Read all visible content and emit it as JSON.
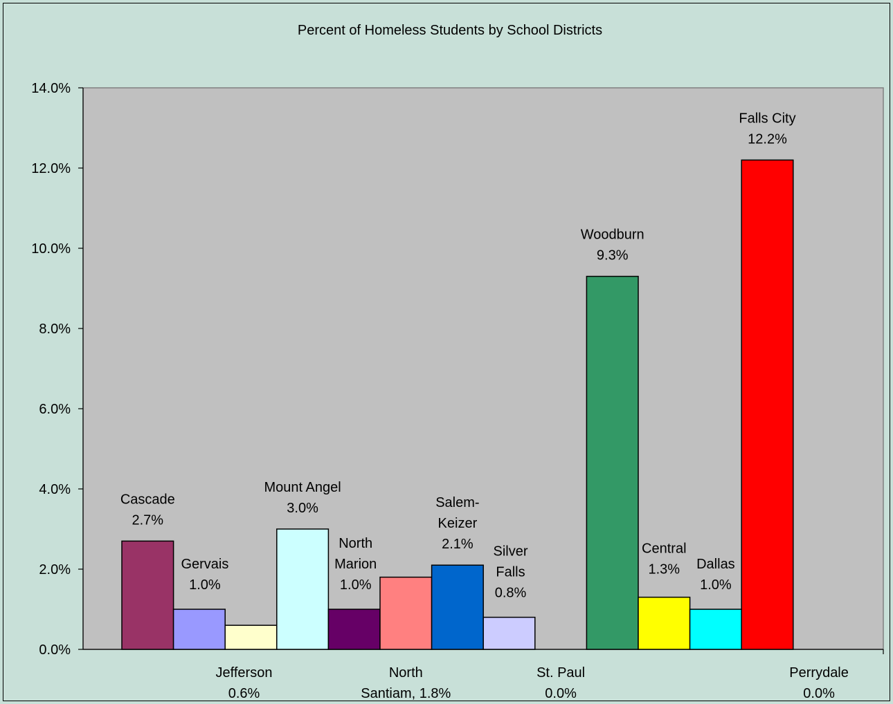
{
  "chart_data": {
    "type": "bar",
    "title": "Percent of Homeless Students by School Districts",
    "xlabel": "",
    "ylabel": "",
    "ylim": [
      0,
      14
    ],
    "y_ticks": [
      "0.0%",
      "2.0%",
      "4.0%",
      "6.0%",
      "8.0%",
      "10.0%",
      "12.0%",
      "14.0%"
    ],
    "grid": false,
    "legend": "none",
    "plot_background": "#c0c0c0",
    "chart_background": "#c8e0d8",
    "categories": [
      "Cascade",
      "Gervais",
      "Jefferson",
      "Mount Angel",
      "North Marion",
      "North Santiam,",
      "Salem-Keizer",
      "Silver Falls",
      "St. Paul",
      "Woodburn",
      "Central",
      "Dallas",
      "Falls City",
      "Perrydale"
    ],
    "values": [
      2.7,
      1.0,
      0.6,
      3.0,
      1.0,
      1.8,
      2.1,
      0.8,
      0.0,
      9.3,
      1.3,
      1.0,
      12.2,
      0.0
    ],
    "value_labels": [
      "2.7%",
      "1.0%",
      "0.6%",
      "3.0%",
      "1.0%",
      "1.8%",
      "2.1%",
      "0.8%",
      "0.0%",
      "9.3%",
      "1.3%",
      "1.0%",
      "12.2%",
      "0.0%"
    ],
    "colors": [
      "#993366",
      "#9999ff",
      "#ffffcc",
      "#ccffff",
      "#660066",
      "#ff8080",
      "#0066cc",
      "#ccccff",
      "#c0c0c0",
      "#339966",
      "#ffff00",
      "#00ffff",
      "#ff0000",
      "#c0c0c0"
    ],
    "data_labels": [
      {
        "category": "Cascade",
        "lines": [
          "Cascade",
          "2.7%"
        ]
      },
      {
        "category": "Gervais",
        "lines": [
          "Gervais",
          "1.0%"
        ]
      },
      {
        "category": "Jefferson",
        "lines": [
          "Jefferson",
          "0.6%"
        ]
      },
      {
        "category": "Mount Angel",
        "lines": [
          "Mount Angel",
          "3.0%"
        ]
      },
      {
        "category": "North Marion",
        "lines": [
          "North",
          "Marion",
          "1.0%"
        ]
      },
      {
        "category": "North Santiam,",
        "lines": [
          "North",
          "Santiam,  1.8%"
        ]
      },
      {
        "category": "Salem-Keizer",
        "lines": [
          "Salem-",
          "Keizer",
          "2.1%"
        ]
      },
      {
        "category": "Silver Falls",
        "lines": [
          "Silver",
          "Falls",
          "0.8%"
        ]
      },
      {
        "category": "St. Paul",
        "lines": [
          "St. Paul",
          "0.0%"
        ]
      },
      {
        "category": "Woodburn",
        "lines": [
          "Woodburn",
          "9.3%"
        ]
      },
      {
        "category": "Central",
        "lines": [
          "Central",
          "1.3%"
        ]
      },
      {
        "category": "Dallas",
        "lines": [
          "Dallas",
          "1.0%"
        ]
      },
      {
        "category": "Falls City",
        "lines": [
          "Falls City",
          "12.2%"
        ]
      },
      {
        "category": "Perrydale",
        "lines": [
          "Perrydale",
          "0.0%"
        ]
      }
    ]
  }
}
